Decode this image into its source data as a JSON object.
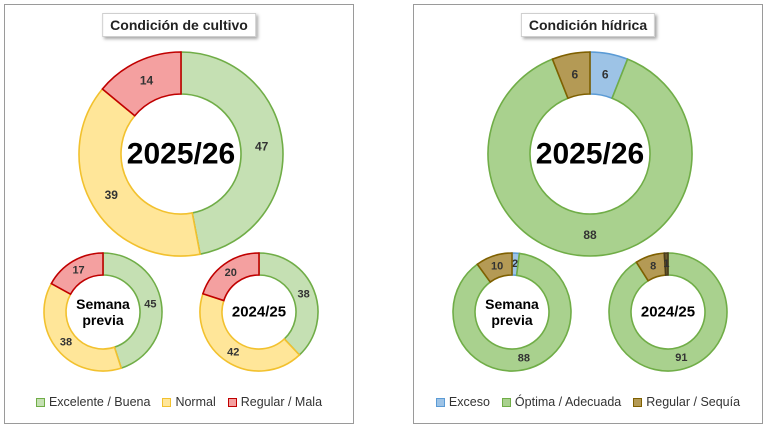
{
  "chart_data": [
    {
      "type": "pie",
      "title": "Condición de cultivo",
      "categories": [
        "Excelente / Buena",
        "Normal",
        "Regular / Mala"
      ],
      "colors": {
        "fill": [
          "#c5e0b3",
          "#ffe699",
          "#f4a0a0"
        ],
        "stroke": [
          "#70ad47",
          "#f2c12e",
          "#c00000"
        ]
      },
      "rings": [
        {
          "label": "2025/26",
          "values": [
            47,
            39,
            14
          ]
        },
        {
          "label": "Semana previa",
          "label_lines": [
            "Semana",
            "previa"
          ],
          "values": [
            45,
            38,
            17
          ]
        },
        {
          "label": "2024/25",
          "values": [
            38,
            42,
            20
          ]
        }
      ]
    },
    {
      "type": "pie",
      "title": "Condición hídrica",
      "categories": [
        "Exceso",
        "Óptima / Adecuada",
        "Regular / Sequía"
      ],
      "colors": {
        "fill": [
          "#9dc3e6",
          "#a9d18e",
          "#b49a55"
        ],
        "stroke": [
          "#5b9bd5",
          "#70ad47",
          "#7f6000"
        ]
      },
      "rings": [
        {
          "label": "2025/26",
          "values": [
            6,
            88,
            6
          ]
        },
        {
          "label": "Semana previa",
          "label_lines": [
            "Semana",
            "previa"
          ],
          "values": [
            2,
            88,
            10
          ]
        },
        {
          "label": "2024/25",
          "values": [
            0,
            91,
            8,
            1
          ],
          "extra_color": {
            "fill": "#6b5a2e",
            "stroke": "#4a3d1c"
          }
        }
      ]
    }
  ]
}
